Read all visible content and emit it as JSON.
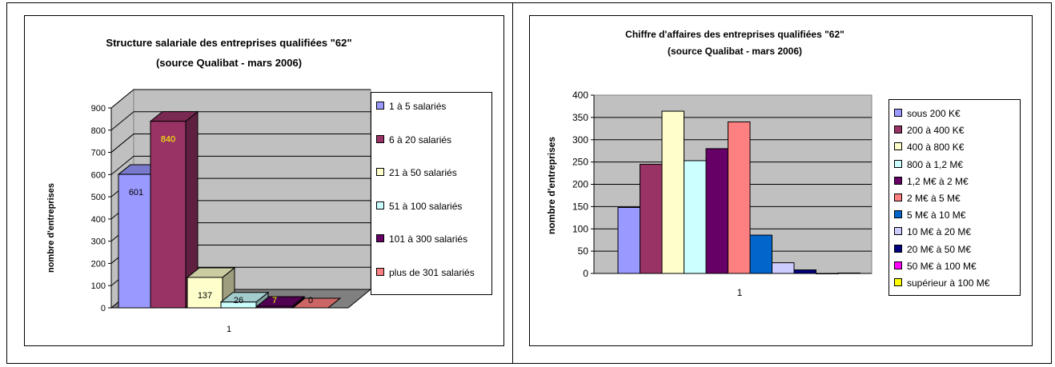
{
  "chart_data": [
    {
      "type": "bar",
      "title": "Structure salariale des entreprises qualifiées \"62\"",
      "subtitle": "(source Qualibat - mars 2006)",
      "xlabel": "",
      "ylabel": "nombre d'entreprises",
      "categories": [
        "1"
      ],
      "ylim": [
        0,
        900
      ],
      "yticks": [
        "0",
        "100",
        "200",
        "300",
        "400",
        "500",
        "600",
        "700",
        "800",
        "900"
      ],
      "grid": true,
      "legend_position": "right",
      "style": "3d-column",
      "series": [
        {
          "name": "1 à 5 salariés",
          "values": [
            601
          ],
          "label": "601",
          "color": "#9999ff",
          "label_color": "#000000"
        },
        {
          "name": "6 à 20 salariés",
          "values": [
            840
          ],
          "label": "840",
          "color": "#993366",
          "label_color": "#ffff00"
        },
        {
          "name": "21 à 50 salariés",
          "values": [
            137
          ],
          "label": "137",
          "color": "#ffffcc",
          "label_color": "#000000"
        },
        {
          "name": "51 à 100 salariés",
          "values": [
            26
          ],
          "label": "26",
          "color": "#ccffff",
          "label_color": "#000000"
        },
        {
          "name": "101 à 300 salariés",
          "values": [
            7
          ],
          "label": "7",
          "color": "#660066",
          "label_color": "#ffff00"
        },
        {
          "name": "plus de 301 salariés",
          "values": [
            0
          ],
          "label": "0",
          "color": "#ff8080",
          "label_color": "#000000"
        }
      ]
    },
    {
      "type": "bar",
      "title": "Chiffre d'affaires des entreprises qualifiées \"62\"",
      "subtitle": "(source Qualibat - mars 2006)",
      "xlabel": "",
      "ylabel": "nombre d'entreprises",
      "categories": [
        "1"
      ],
      "ylim": [
        0,
        400
      ],
      "yticks": [
        "0",
        "50",
        "100",
        "150",
        "200",
        "250",
        "300",
        "350",
        "400"
      ],
      "grid": true,
      "legend_position": "right",
      "style": "2d-column",
      "series": [
        {
          "name": "sous 200 K€",
          "values": [
            148
          ],
          "color": "#9999ff"
        },
        {
          "name": "200 à 400 K€",
          "values": [
            245
          ],
          "color": "#993366"
        },
        {
          "name": "400 à 800 K€",
          "values": [
            364
          ],
          "color": "#ffffcc"
        },
        {
          "name": "800 à 1,2 M€",
          "values": [
            253
          ],
          "color": "#ccffff"
        },
        {
          "name": "1,2 M€ à 2 M€",
          "values": [
            280
          ],
          "color": "#660066"
        },
        {
          "name": "2 M€ à 5 M€",
          "values": [
            340
          ],
          "color": "#ff8080"
        },
        {
          "name": "5 M€ à 10 M€",
          "values": [
            86
          ],
          "color": "#0066cc"
        },
        {
          "name": "10 M€ à 20 M€",
          "values": [
            24
          ],
          "color": "#ccccff"
        },
        {
          "name": "20 M€ à 50 M€",
          "values": [
            8
          ],
          "color": "#000080"
        },
        {
          "name": "50 M€ à 100 M€",
          "values": [
            0
          ],
          "color": "#ff00ff"
        },
        {
          "name": "supérieur à 100 M€",
          "values": [
            1
          ],
          "color": "#ffff00"
        }
      ]
    }
  ]
}
